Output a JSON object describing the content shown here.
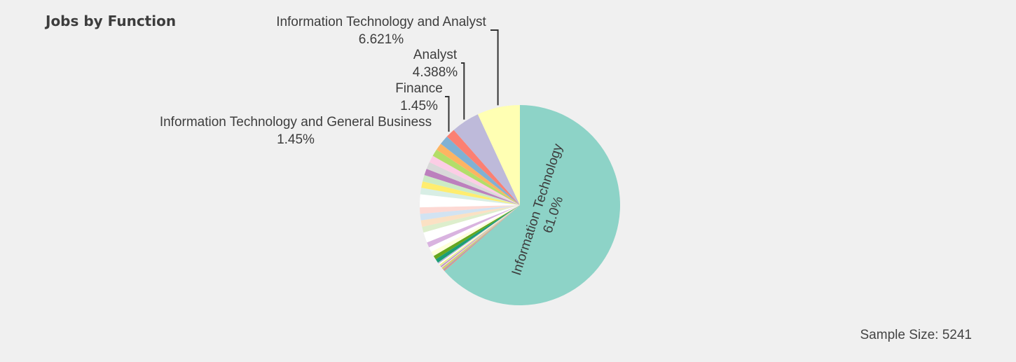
{
  "title": "Jobs by Function",
  "sample_size_text": "Sample Size: 5241",
  "chart_data": {
    "type": "pie",
    "title": "Jobs by Function",
    "slices": [
      {
        "label": "Information Technology",
        "value": 61.0,
        "value_text": "61.0%",
        "color": "#8dd3c7"
      },
      {
        "label": "",
        "value": 0.15,
        "color": "#fb8072"
      },
      {
        "label": "",
        "value": 0.15,
        "color": "#80b1d3"
      },
      {
        "label": "",
        "value": 0.15,
        "color": "#fdb462"
      },
      {
        "label": "",
        "value": 0.15,
        "color": "#b3de69"
      },
      {
        "label": "",
        "value": 0.15,
        "color": "#fccde5"
      },
      {
        "label": "",
        "value": 0.15,
        "color": "#bc80bd"
      },
      {
        "label": "",
        "value": 0.15,
        "color": "#ccebc5"
      },
      {
        "label": "",
        "value": 0.15,
        "color": "#ffed6f"
      },
      {
        "label": "",
        "value": 0.2,
        "color": "#ffffff"
      },
      {
        "label": "",
        "value": 0.2,
        "color": "#bebada"
      },
      {
        "label": "",
        "value": 0.6,
        "color": "#1b9e77"
      },
      {
        "label": "",
        "value": 0.6,
        "color": "#66a61e"
      },
      {
        "label": "",
        "value": 0.7,
        "color": "#ffffd9"
      },
      {
        "label": "",
        "value": 0.8,
        "color": "#ffffff"
      },
      {
        "label": "",
        "value": 0.8,
        "color": "#d9b3e0"
      },
      {
        "label": "",
        "value": 1.6,
        "color": "#ffffff"
      },
      {
        "label": "",
        "value": 0.9,
        "color": "#ddeecc"
      },
      {
        "label": "",
        "value": 1.0,
        "color": "#fbe1c4"
      },
      {
        "label": "",
        "value": 1.0,
        "color": "#d2e3f2"
      },
      {
        "label": "",
        "value": 1.0,
        "color": "#fdd9d4"
      },
      {
        "label": "",
        "value": 2.0,
        "color": "#ffffff"
      },
      {
        "label": "",
        "value": 1.0,
        "color": "#d8eee5"
      },
      {
        "label": "",
        "value": 1.0,
        "color": "#ffed6f"
      },
      {
        "label": "",
        "value": 1.0,
        "color": "#ccebc5"
      },
      {
        "label": "",
        "value": 1.0,
        "color": "#bc80bd"
      },
      {
        "label": "",
        "value": 1.1,
        "color": "#d9d9d9"
      },
      {
        "label": "",
        "value": 1.1,
        "color": "#fccde5"
      },
      {
        "label": "",
        "value": 1.1,
        "color": "#b3de69"
      },
      {
        "label": "",
        "value": 1.1,
        "color": "#fdb462"
      },
      {
        "label": "Information Technology and General Business",
        "value": 1.45,
        "value_text": "1.45%",
        "color": "#80b1d3"
      },
      {
        "label": "Finance",
        "value": 1.45,
        "value_text": "1.45%",
        "color": "#fb8072"
      },
      {
        "label": "Analyst",
        "value": 4.388,
        "value_text": "4.388%",
        "color": "#bebada"
      },
      {
        "label": "Information Technology and Analyst",
        "value": 6.621,
        "value_text": "6.621%",
        "color": "#ffffb3"
      }
    ]
  }
}
